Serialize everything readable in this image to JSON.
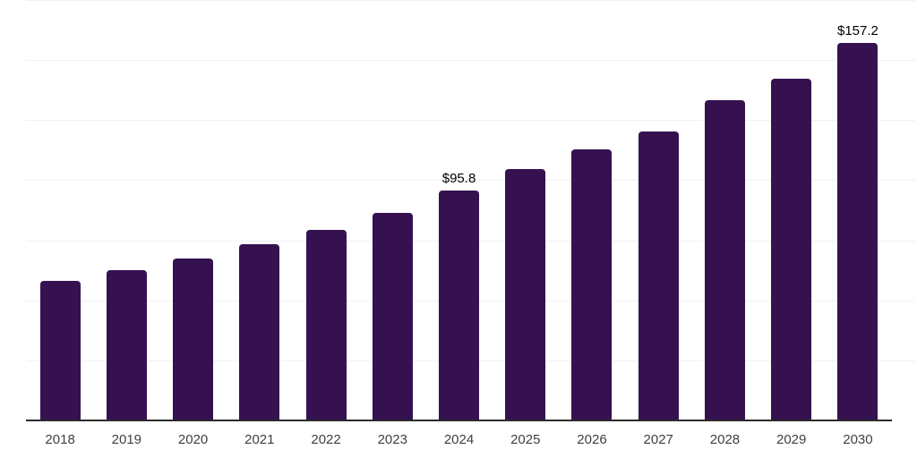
{
  "chart_data": {
    "type": "bar",
    "title": "",
    "xlabel": "",
    "ylabel": "",
    "categories": [
      "2018",
      "2019",
      "2020",
      "2021",
      "2022",
      "2023",
      "2024",
      "2025",
      "2026",
      "2027",
      "2028",
      "2029",
      "2030"
    ],
    "values": [
      58.1,
      62.4,
      67.4,
      73.2,
      79.5,
      86.4,
      95.8,
      104.6,
      112.8,
      120.4,
      133.3,
      142.3,
      157.2
    ],
    "data_labels": {
      "2024": "$95.8",
      "2030": "$157.2"
    },
    "ylim": [
      0,
      175
    ],
    "grid_step": 25,
    "grid": true,
    "legend": "none",
    "colors": {
      "bar": "#35124F",
      "grid_line": "#f1f1f4",
      "axis_line": "#2b2b2b",
      "tick_label": "#3f3f3f",
      "value_label": "#000000",
      "background": "#ffffff"
    }
  }
}
